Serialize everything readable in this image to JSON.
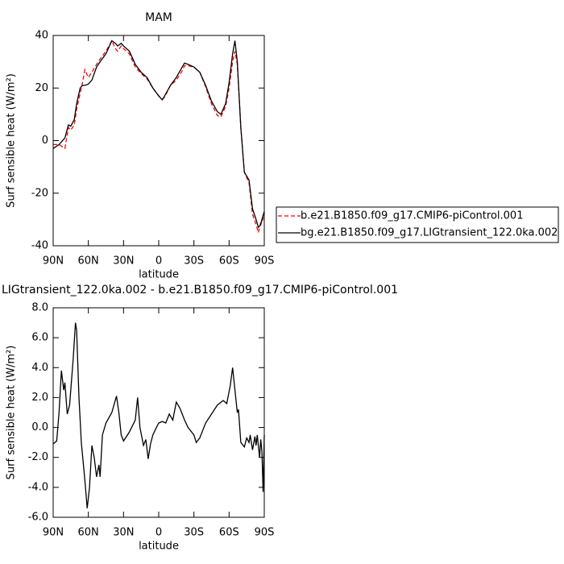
{
  "chart_data": [
    {
      "type": "line",
      "title": "MAM",
      "ylabel": "Surf sensible heat (W/m²)",
      "xlabel": "latitude",
      "x": [
        90,
        85,
        80,
        77,
        75,
        72,
        70,
        67,
        65,
        63,
        60,
        57,
        53,
        50,
        45,
        40,
        37,
        35,
        32,
        30,
        25,
        20,
        15,
        10,
        5,
        0,
        -3,
        -5,
        -10,
        -15,
        -20,
        -22,
        -25,
        -30,
        -35,
        -40,
        -45,
        -50,
        -53,
        -57,
        -60,
        -63,
        -65,
        -67,
        -70,
        -73,
        -77,
        -80,
        -83,
        -85,
        -87,
        -88,
        -90
      ],
      "series": [
        {
          "name": "b.e21.B1850.f09_g17.CMIP6-piControl.001",
          "color": "#ff0000",
          "dash": true,
          "values": [
            -1.5,
            -1.5,
            -3,
            5,
            4,
            6,
            12,
            18,
            22,
            27,
            24,
            26,
            29,
            31,
            34,
            38,
            35,
            34,
            36,
            35,
            33,
            28,
            25.5,
            23.5,
            20,
            17,
            15.8,
            16.5,
            21,
            23,
            26.5,
            28.5,
            28.5,
            28,
            26,
            20.5,
            14,
            9.5,
            9,
            13,
            20,
            30,
            34,
            29,
            5,
            -12,
            -16,
            -28,
            -32,
            -35,
            -31,
            -31,
            -28
          ]
        },
        {
          "name": "bg.e21.B1850.f09_g17.LIGtransient_122.0ka.002",
          "color": "#000000",
          "dash": false,
          "values": [
            -3,
            -1.5,
            1,
            6,
            5.5,
            8,
            14,
            20,
            21,
            21,
            21.5,
            23,
            28,
            30,
            33,
            38,
            37,
            36,
            37,
            36,
            34,
            29,
            26,
            24,
            20,
            17,
            15.5,
            17,
            21,
            24,
            28,
            29.5,
            29,
            28,
            26,
            21,
            15,
            11,
            10,
            14,
            22,
            33,
            38,
            30,
            5,
            -12,
            -15,
            -26,
            -30,
            -33,
            -32,
            -30,
            -27
          ]
        }
      ],
      "xlim": [
        90,
        -90
      ],
      "xticks": [
        {
          "value": 90,
          "label": "90N"
        },
        {
          "value": 60,
          "label": "60N"
        },
        {
          "value": 30,
          "label": "30N"
        },
        0,
        {
          "value": -30,
          "label": "30S"
        },
        {
          "value": -60,
          "label": "60S"
        },
        {
          "value": -90,
          "label": "90S"
        }
      ],
      "ylim": [
        -40,
        40
      ],
      "yticks": [
        -40,
        -20,
        0,
        20,
        40
      ],
      "legend": "right"
    },
    {
      "type": "line",
      "title": "LIGtransient_122.0ka.002 - b.e21.B1850.f09_g17.CMIP6-piControl.001",
      "ylabel": "Surf sensible heat (W/m²)",
      "xlabel": "latitude",
      "x": [
        90,
        87,
        85,
        83,
        81,
        80,
        78,
        76,
        73,
        71,
        70,
        68,
        66,
        63,
        61,
        59,
        57,
        55,
        53,
        51,
        50,
        48,
        45,
        40,
        36,
        34,
        32,
        30,
        25,
        20,
        18,
        16,
        13,
        11,
        9,
        7,
        5,
        2,
        0,
        -3,
        -6,
        -9,
        -12,
        -15,
        -18,
        -22,
        -25,
        -30,
        -32,
        -35,
        -40,
        -45,
        -50,
        -55,
        -58,
        -61,
        -63,
        -65,
        -67,
        -68,
        -70,
        -73,
        -75,
        -77,
        -78,
        -80,
        -82,
        -83,
        -84,
        -86,
        -87,
        -88,
        -89,
        -90
      ],
      "series": [
        {
          "color": "#000000",
          "dash": false,
          "values": [
            -1.1,
            -0.9,
            1,
            3.8,
            2.5,
            3,
            0.9,
            1.5,
            4.5,
            7,
            6.5,
            2,
            -1,
            -3.5,
            -5.4,
            -4,
            -1.2,
            -2,
            -3.3,
            -2.5,
            -3.3,
            -0.5,
            0.3,
            1,
            2.1,
            1,
            -0.5,
            -0.9,
            -0.3,
            0.5,
            2,
            0,
            -1.2,
            -0.8,
            -2.1,
            -1.1,
            -0.5,
            0,
            0.3,
            0.4,
            0.3,
            0.9,
            0.5,
            1.7,
            1.3,
            0.5,
            0,
            -0.5,
            -1,
            -0.7,
            0.3,
            0.9,
            1.5,
            1.8,
            1.6,
            2.8,
            4,
            2.5,
            1,
            1.2,
            -1,
            -1.3,
            -0.7,
            -1,
            -0.5,
            -1.5,
            -0.6,
            -1.2,
            -0.5,
            -2,
            -0.8,
            -1.6,
            -4.3,
            -0.5
          ]
        }
      ],
      "xlim": [
        90,
        -90
      ],
      "xticks": [
        {
          "value": 90,
          "label": "90N"
        },
        {
          "value": 60,
          "label": "60N"
        },
        {
          "value": 30,
          "label": "30N"
        },
        0,
        {
          "value": -30,
          "label": "30S"
        },
        {
          "value": -60,
          "label": "60S"
        },
        {
          "value": -90,
          "label": "90S"
        }
      ],
      "ylim": [
        -6,
        8
      ],
      "yticks": [
        {
          "value": -6,
          "label": "-6.0"
        },
        {
          "value": -4,
          "label": "-4.0"
        },
        {
          "value": -2,
          "label": "-2.0"
        },
        {
          "value": 0,
          "label": "0.0"
        },
        {
          "value": 2,
          "label": "2.0"
        },
        {
          "value": 4,
          "label": "4.0"
        },
        {
          "value": 6,
          "label": "6.0"
        },
        {
          "value": 8,
          "label": "8.0"
        }
      ]
    }
  ]
}
